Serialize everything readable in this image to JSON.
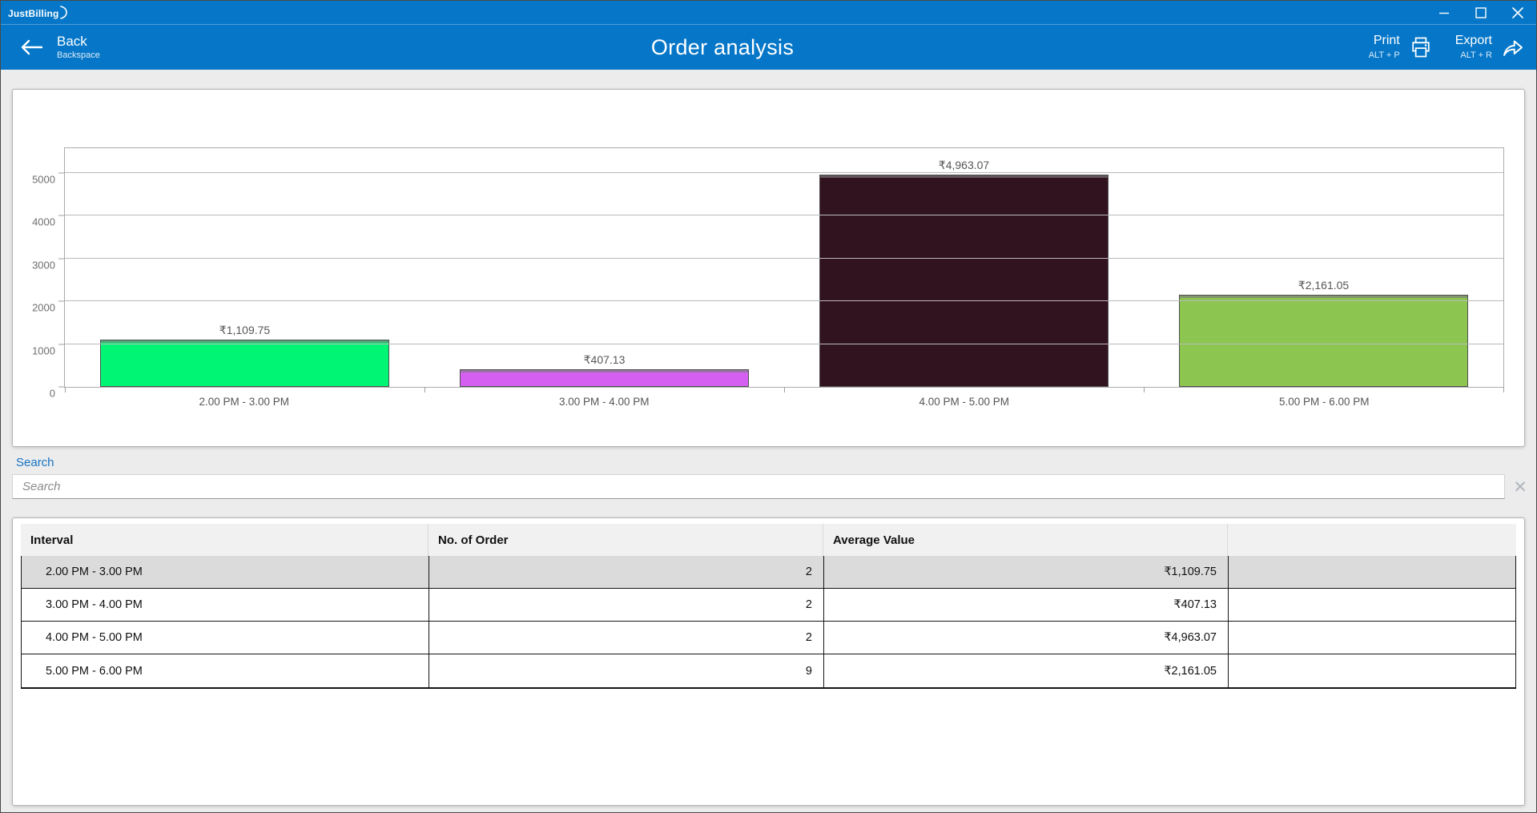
{
  "titlebar": {
    "logo_text": "JustBilling"
  },
  "navbar": {
    "back": {
      "label": "Back",
      "shortcut": "Backspace"
    },
    "title": "Order analysis",
    "print": {
      "label": "Print",
      "shortcut": "ALT + P"
    },
    "export": {
      "label": "Export",
      "shortcut": "ALT + R"
    }
  },
  "chart_data": {
    "type": "bar",
    "title": "",
    "categories": [
      "2.00 PM - 3.00 PM",
      "3.00 PM - 4.00 PM",
      "4.00 PM - 5.00 PM",
      "5.00 PM - 6.00 PM"
    ],
    "values": [
      1109.75,
      407.13,
      4963.07,
      2161.05
    ],
    "value_labels": [
      "₹1,109.75",
      "₹407.13",
      "₹4,963.07",
      "₹2,161.05"
    ],
    "bar_colors": [
      "#00F575",
      "#D45FF0",
      "#31121F",
      "#8CC550"
    ],
    "xlabel": "",
    "ylabel": "",
    "ylim": [
      0,
      5580
    ],
    "yticks": [
      0,
      1000,
      2000,
      3000,
      4000,
      5000
    ],
    "grid": true,
    "legend": "none"
  },
  "search": {
    "label": "Search",
    "placeholder": "Search"
  },
  "table": {
    "columns": [
      "Interval",
      "No. of Order",
      "Average Value",
      ""
    ],
    "rows": [
      [
        "2.00 PM - 3.00 PM",
        "2",
        "₹1,109.75"
      ],
      [
        "3.00 PM - 4.00 PM",
        "2",
        "₹407.13"
      ],
      [
        "4.00 PM - 5.00 PM",
        "2",
        "₹4,963.07"
      ],
      [
        "5.00 PM - 6.00 PM",
        "9",
        "₹2,161.05"
      ]
    ],
    "selected_row_index": 0
  },
  "colors": {
    "accent_blue": "#0677C8",
    "search_label_blue": "#1473C4",
    "selected_row": "#DBDBDB",
    "bar_green": "#00F575",
    "bar_purple": "#D45FF0",
    "bar_dark_maroon": "#31121F",
    "bar_olive_green": "#8CC550"
  }
}
